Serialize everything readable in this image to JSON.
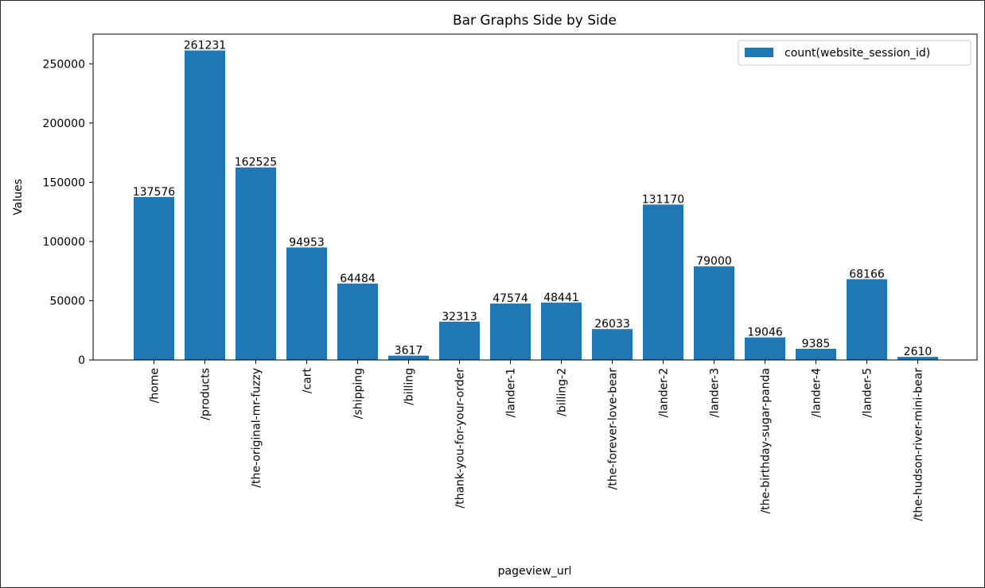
{
  "chart_data": {
    "type": "bar",
    "title": "Bar Graphs Side by Side",
    "xlabel": "pageview_url",
    "ylabel": "Values",
    "ylim": [
      0,
      275000
    ],
    "yticks": [
      0,
      50000,
      100000,
      150000,
      200000,
      250000
    ],
    "grid": false,
    "legend_position": "top-right",
    "categories": [
      "/home",
      "/products",
      "/the-original-mr-fuzzy",
      "/cart",
      "/shipping",
      "/billing",
      "/thank-you-for-your-order",
      "/lander-1",
      "/billing-2",
      "/the-forever-love-bear",
      "/lander-2",
      "/lander-3",
      "/the-birthday-sugar-panda",
      "/lander-4",
      "/lander-5",
      "/the-hudson-river-mini-bear"
    ],
    "series": [
      {
        "name": "count(website_session_id)",
        "color": "#1f77b4",
        "values": [
          137576,
          261231,
          162525,
          94953,
          64484,
          3617,
          32313,
          47574,
          48441,
          26033,
          131170,
          79000,
          19046,
          9385,
          68166,
          2610
        ]
      }
    ]
  }
}
